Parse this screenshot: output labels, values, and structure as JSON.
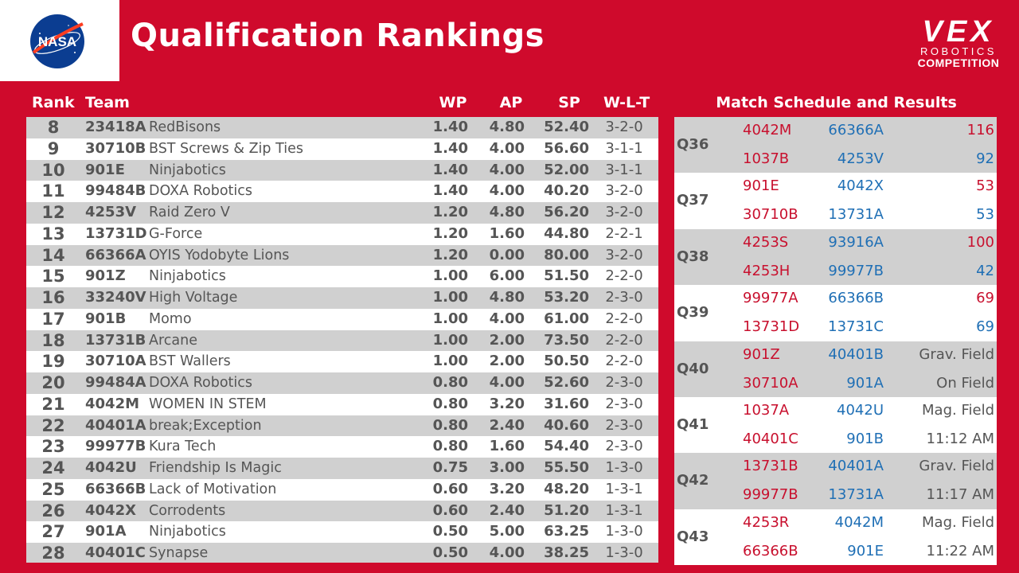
{
  "header": {
    "title": "Qualification Rankings",
    "nasa_logo": "NASA",
    "vex_logo": {
      "word": "VEX",
      "line1": "ROBOTICS",
      "line2": "COMPETITION"
    }
  },
  "rankings": {
    "columns": {
      "rank": "Rank",
      "team": "Team",
      "wp": "WP",
      "ap": "AP",
      "sp": "SP",
      "wlt": "W-L-T"
    },
    "rows": [
      {
        "rank": "8",
        "num": "23418A",
        "name": "RedBisons",
        "wp": "1.40",
        "ap": "4.80",
        "sp": "52.40",
        "wlt": "3-2-0"
      },
      {
        "rank": "9",
        "num": "30710B",
        "name": "BST Screws & Zip Ties",
        "wp": "1.40",
        "ap": "4.00",
        "sp": "56.60",
        "wlt": "3-1-1"
      },
      {
        "rank": "10",
        "num": "901E",
        "name": "Ninjabotics",
        "wp": "1.40",
        "ap": "4.00",
        "sp": "52.00",
        "wlt": "3-1-1"
      },
      {
        "rank": "11",
        "num": "99484B",
        "name": "DOXA Robotics",
        "wp": "1.40",
        "ap": "4.00",
        "sp": "40.20",
        "wlt": "3-2-0"
      },
      {
        "rank": "12",
        "num": "4253V",
        "name": "Raid Zero V",
        "wp": "1.20",
        "ap": "4.80",
        "sp": "56.20",
        "wlt": "3-2-0"
      },
      {
        "rank": "13",
        "num": "13731D",
        "name": "G-Force",
        "wp": "1.20",
        "ap": "1.60",
        "sp": "44.80",
        "wlt": "2-2-1"
      },
      {
        "rank": "14",
        "num": "66366A",
        "name": "OYIS Yodobyte Lions",
        "wp": "1.20",
        "ap": "0.00",
        "sp": "80.00",
        "wlt": "3-2-0"
      },
      {
        "rank": "15",
        "num": "901Z",
        "name": "Ninjabotics",
        "wp": "1.00",
        "ap": "6.00",
        "sp": "51.50",
        "wlt": "2-2-0"
      },
      {
        "rank": "16",
        "num": "33240V",
        "name": "High Voltage",
        "wp": "1.00",
        "ap": "4.80",
        "sp": "53.20",
        "wlt": "2-3-0"
      },
      {
        "rank": "17",
        "num": "901B",
        "name": "Momo",
        "wp": "1.00",
        "ap": "4.00",
        "sp": "61.00",
        "wlt": "2-2-0"
      },
      {
        "rank": "18",
        "num": "13731B",
        "name": "Arcane",
        "wp": "1.00",
        "ap": "2.00",
        "sp": "73.50",
        "wlt": "2-2-0"
      },
      {
        "rank": "19",
        "num": "30710A",
        "name": "BST Wallers",
        "wp": "1.00",
        "ap": "2.00",
        "sp": "50.50",
        "wlt": "2-2-0"
      },
      {
        "rank": "20",
        "num": "99484A",
        "name": "DOXA Robotics",
        "wp": "0.80",
        "ap": "4.00",
        "sp": "52.60",
        "wlt": "2-3-0"
      },
      {
        "rank": "21",
        "num": "4042M",
        "name": "WOMEN IN STEM",
        "wp": "0.80",
        "ap": "3.20",
        "sp": "31.60",
        "wlt": "2-3-0"
      },
      {
        "rank": "22",
        "num": "40401A",
        "name": "break;Exception",
        "wp": "0.80",
        "ap": "2.40",
        "sp": "40.60",
        "wlt": "2-3-0"
      },
      {
        "rank": "23",
        "num": "99977B",
        "name": "Kura Tech",
        "wp": "0.80",
        "ap": "1.60",
        "sp": "54.40",
        "wlt": "2-3-0"
      },
      {
        "rank": "24",
        "num": "4042U",
        "name": "Friendship Is Magic",
        "wp": "0.75",
        "ap": "3.00",
        "sp": "55.50",
        "wlt": "1-3-0"
      },
      {
        "rank": "25",
        "num": "66366B",
        "name": "Lack of Motivation",
        "wp": "0.60",
        "ap": "3.20",
        "sp": "48.20",
        "wlt": "1-3-1"
      },
      {
        "rank": "26",
        "num": "4042X",
        "name": "Corrodents",
        "wp": "0.60",
        "ap": "2.40",
        "sp": "51.20",
        "wlt": "1-3-1"
      },
      {
        "rank": "27",
        "num": "901A",
        "name": "Ninjabotics",
        "wp": "0.50",
        "ap": "5.00",
        "sp": "63.25",
        "wlt": "1-3-0"
      },
      {
        "rank": "28",
        "num": "40401C",
        "name": "Synapse",
        "wp": "0.50",
        "ap": "4.00",
        "sp": "38.25",
        "wlt": "1-3-0"
      }
    ]
  },
  "schedule": {
    "title": "Match Schedule and Results",
    "matches": [
      {
        "id": "Q36",
        "red1": "4042M",
        "blue1": "66366A",
        "res1": "116",
        "res1_color": "red",
        "red2": "1037B",
        "blue2": "4253V",
        "res2": "92",
        "res2_color": "blue"
      },
      {
        "id": "Q37",
        "red1": "901E",
        "blue1": "4042X",
        "res1": "53",
        "res1_color": "red",
        "red2": "30710B",
        "blue2": "13731A",
        "res2": "53",
        "res2_color": "blue"
      },
      {
        "id": "Q38",
        "red1": "4253S",
        "blue1": "93916A",
        "res1": "100",
        "res1_color": "red",
        "red2": "4253H",
        "blue2": "99977B",
        "res2": "42",
        "res2_color": "blue"
      },
      {
        "id": "Q39",
        "red1": "99977A",
        "blue1": "66366B",
        "res1": "69",
        "res1_color": "red",
        "red2": "13731D",
        "blue2": "13731C",
        "res2": "69",
        "res2_color": "blue"
      },
      {
        "id": "Q40",
        "red1": "901Z",
        "blue1": "40401B",
        "res1": "Grav. Field",
        "res1_color": "gray",
        "red2": "30710A",
        "blue2": "901A",
        "res2": "On Field",
        "res2_color": "gray"
      },
      {
        "id": "Q41",
        "red1": "1037A",
        "blue1": "4042U",
        "res1": "Mag. Field",
        "res1_color": "gray",
        "red2": "40401C",
        "blue2": "901B",
        "res2": "11:12 AM",
        "res2_color": "gray"
      },
      {
        "id": "Q42",
        "red1": "13731B",
        "blue1": "40401A",
        "res1": "Grav. Field",
        "res1_color": "gray",
        "red2": "99977B",
        "blue2": "13731A",
        "res2": "11:17 AM",
        "res2_color": "gray"
      },
      {
        "id": "Q43",
        "red1": "4253R",
        "blue1": "4042M",
        "res1": "Mag. Field",
        "res1_color": "gray",
        "red2": "66366B",
        "blue2": "901E",
        "res2": "11:22 AM",
        "res2_color": "gray"
      }
    ]
  },
  "colors": {
    "background": "#cf0a2c",
    "red_alliance": "#c8102e",
    "blue_alliance": "#1f6fb5"
  }
}
